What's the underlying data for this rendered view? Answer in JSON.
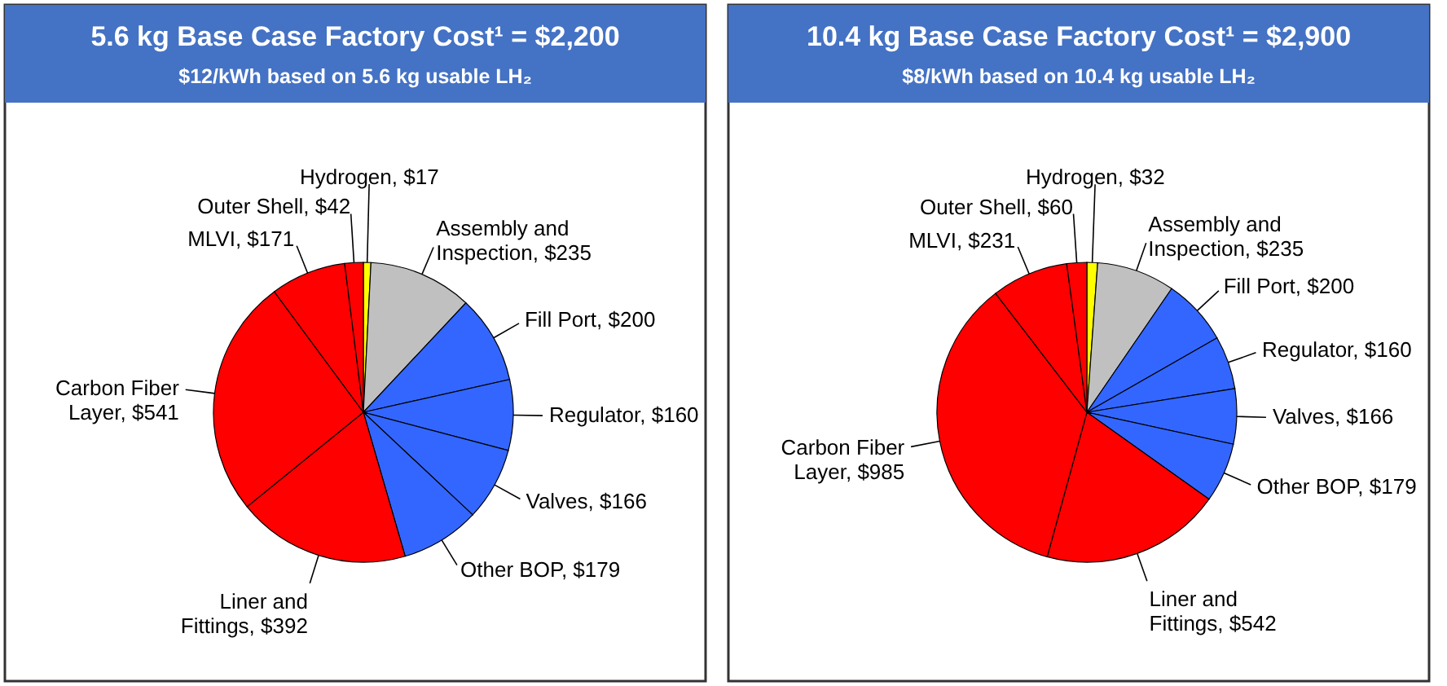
{
  "chart_data": [
    {
      "type": "pie",
      "title": "5.6 kg Base Case Factory Cost¹ = $2,200",
      "subtitle": "$12/kWh based on 5.6 kg usable LH₂",
      "categories": [
        "Hydrogen",
        "Assembly and Inspection",
        "Fill Port",
        "Regulator",
        "Valves",
        "Other BOP",
        "Liner and Fittings",
        "Carbon Fiber Layer",
        "MLVI",
        "Outer Shell"
      ],
      "values": [
        17,
        235,
        200,
        160,
        166,
        179,
        392,
        541,
        171,
        42
      ],
      "value_labels": [
        "$17",
        "$235",
        "$200",
        "$160",
        "$166",
        "$179",
        "$392",
        "$541",
        "$171",
        "$42"
      ],
      "colors": [
        "#ffff00",
        "#c0c0c0",
        "#3366ff",
        "#3366ff",
        "#3366ff",
        "#3366ff",
        "#ff0000",
        "#ff0000",
        "#ff0000",
        "#ff0000"
      ]
    },
    {
      "type": "pie",
      "title": "10.4 kg Base Case Factory Cost¹ = $2,900",
      "subtitle": "$8/kWh based on 10.4 kg usable LH₂",
      "categories": [
        "Hydrogen",
        "Assembly and Inspection",
        "Fill Port",
        "Regulator",
        "Valves",
        "Other BOP",
        "Liner and Fittings",
        "Carbon Fiber Layer",
        "MLVI",
        "Outer Shell"
      ],
      "values": [
        32,
        235,
        200,
        160,
        166,
        179,
        542,
        985,
        231,
        60
      ],
      "value_labels": [
        "$32",
        "$235",
        "$200",
        "$160",
        "$166",
        "$179",
        "$542",
        "$985",
        "$231",
        "$60"
      ],
      "colors": [
        "#ffff00",
        "#c0c0c0",
        "#3366ff",
        "#3366ff",
        "#3366ff",
        "#3366ff",
        "#ff0000",
        "#ff0000",
        "#ff0000",
        "#ff0000"
      ]
    }
  ]
}
